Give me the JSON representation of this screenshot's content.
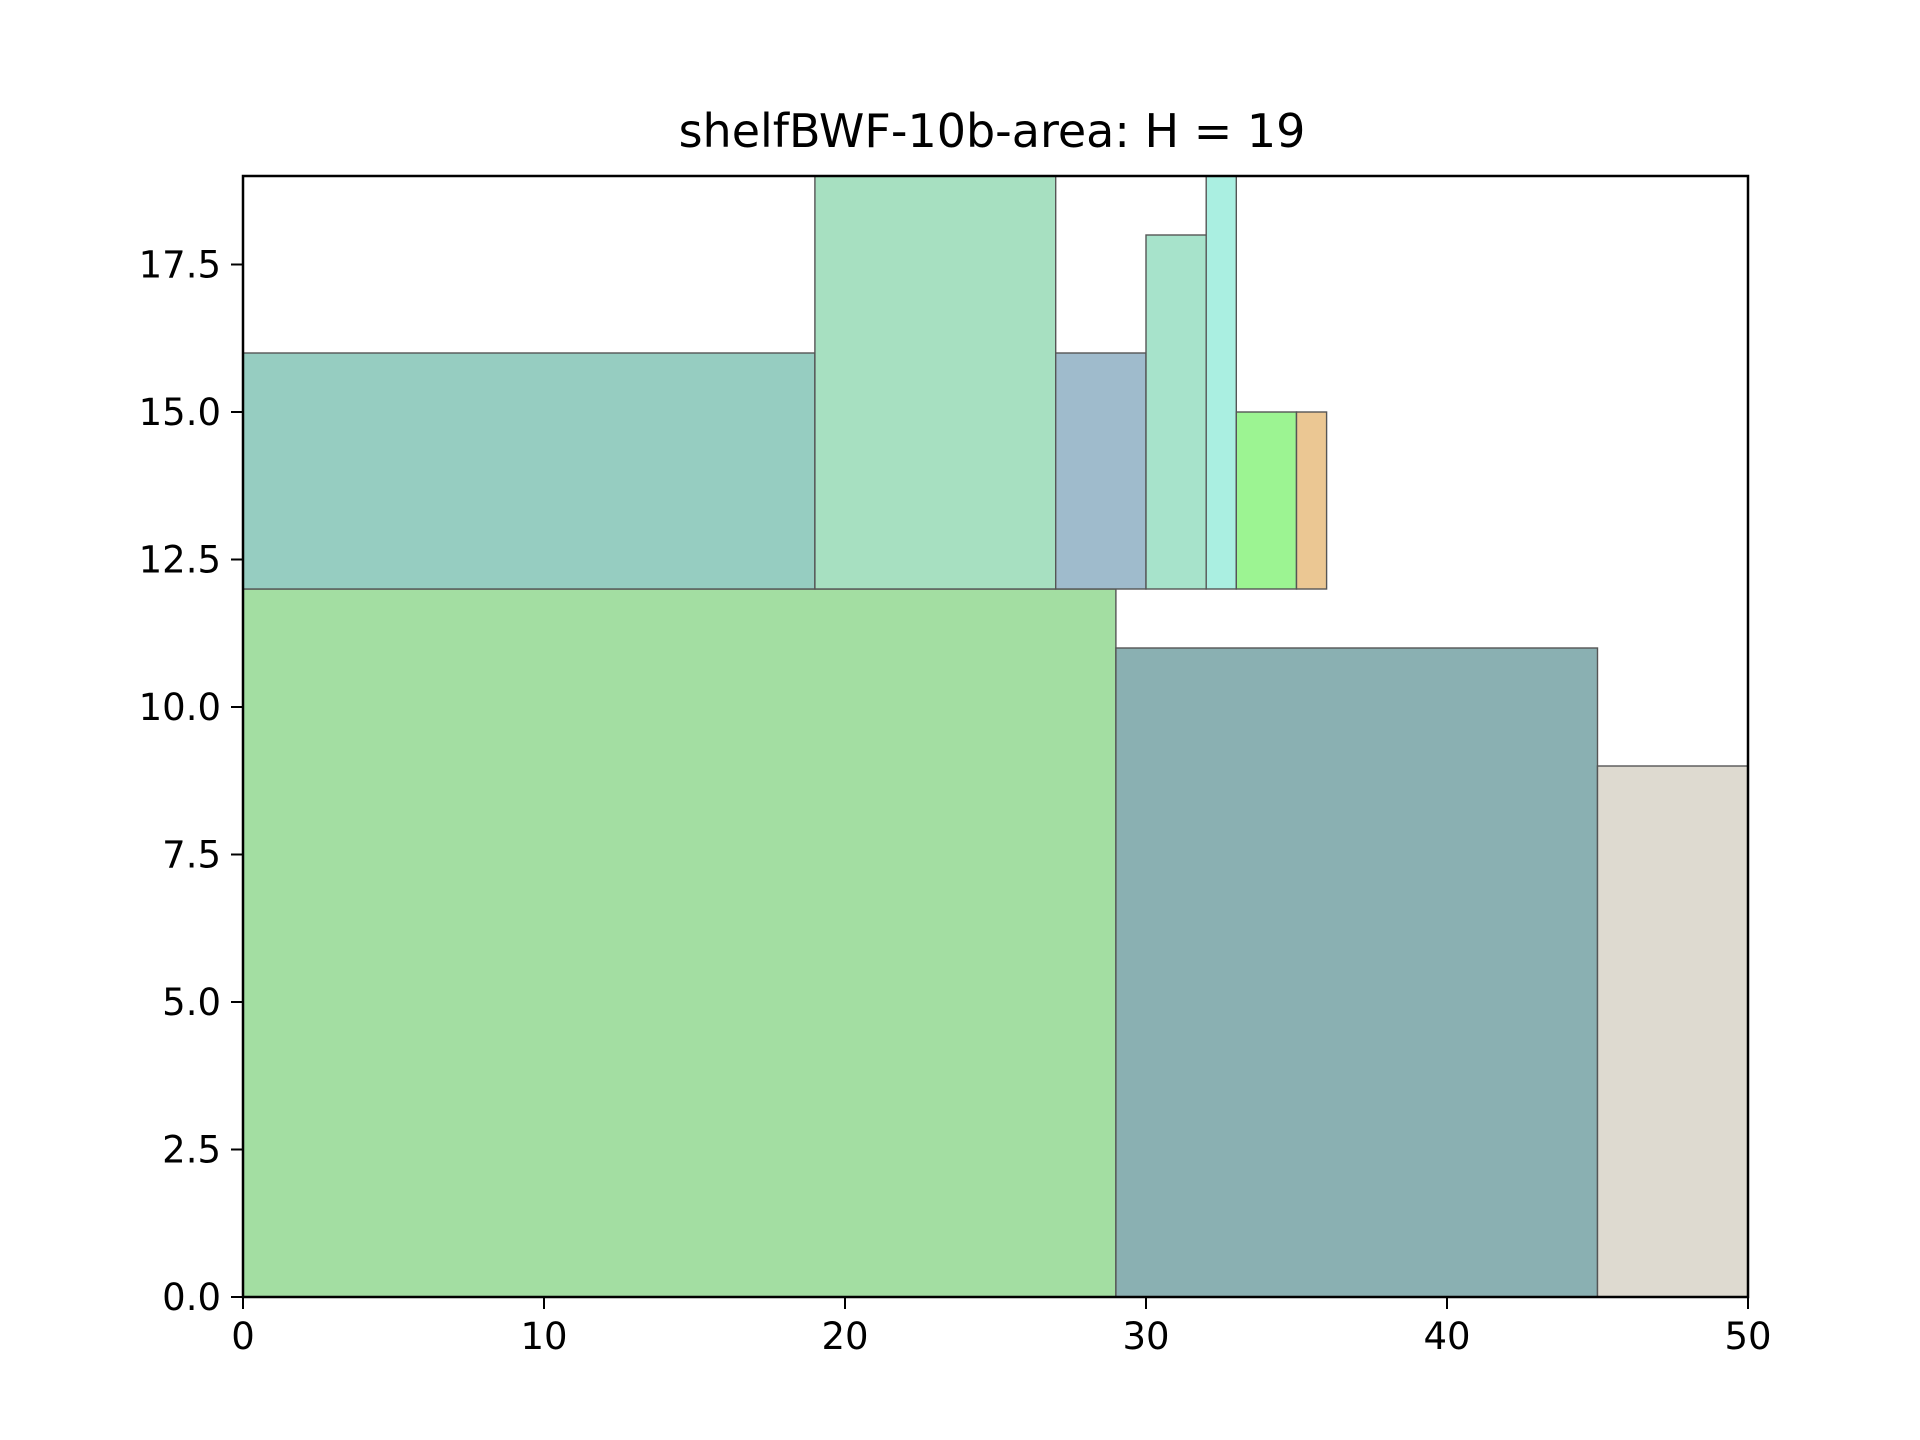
{
  "chart_data": {
    "type": "rectangles",
    "title": "shelfBWF-10b-area: H = 19",
    "xlabel": "",
    "ylabel": "",
    "xlim": [
      0,
      50
    ],
    "ylim": [
      0,
      19
    ],
    "grid": false,
    "x_ticks": [
      0,
      10,
      20,
      30,
      40,
      50
    ],
    "x_tick_labels": [
      "0",
      "10",
      "20",
      "30",
      "40",
      "50"
    ],
    "y_ticks": [
      0,
      2.5,
      5,
      7.5,
      10,
      12.5,
      15,
      17.5
    ],
    "y_tick_labels": [
      "0.0",
      "2.5",
      "5.0",
      "7.5",
      "10.0",
      "12.5",
      "15.0",
      "17.5"
    ],
    "rectangles": [
      {
        "x": 0,
        "y": 0,
        "width": 29,
        "height": 12,
        "color": "#a3dea2"
      },
      {
        "x": 29,
        "y": 0,
        "width": 16,
        "height": 11,
        "color": "#8ab0b2"
      },
      {
        "x": 45,
        "y": 0,
        "width": 5,
        "height": 9,
        "color": "#dedad0"
      },
      {
        "x": 0,
        "y": 12,
        "width": 19,
        "height": 4,
        "color": "#96cdc1"
      },
      {
        "x": 19,
        "y": 12,
        "width": 8,
        "height": 7,
        "color": "#a7e0c1"
      },
      {
        "x": 27,
        "y": 12,
        "width": 3,
        "height": 4,
        "color": "#9fbbcc"
      },
      {
        "x": 30,
        "y": 12,
        "width": 2,
        "height": 6,
        "color": "#a7e3cb"
      },
      {
        "x": 32,
        "y": 12,
        "width": 1,
        "height": 7,
        "color": "#aaefe1"
      },
      {
        "x": 33,
        "y": 12,
        "width": 2,
        "height": 3,
        "color": "#9cf492"
      },
      {
        "x": 35,
        "y": 12,
        "width": 1,
        "height": 3,
        "color": "#ebc793"
      }
    ]
  }
}
